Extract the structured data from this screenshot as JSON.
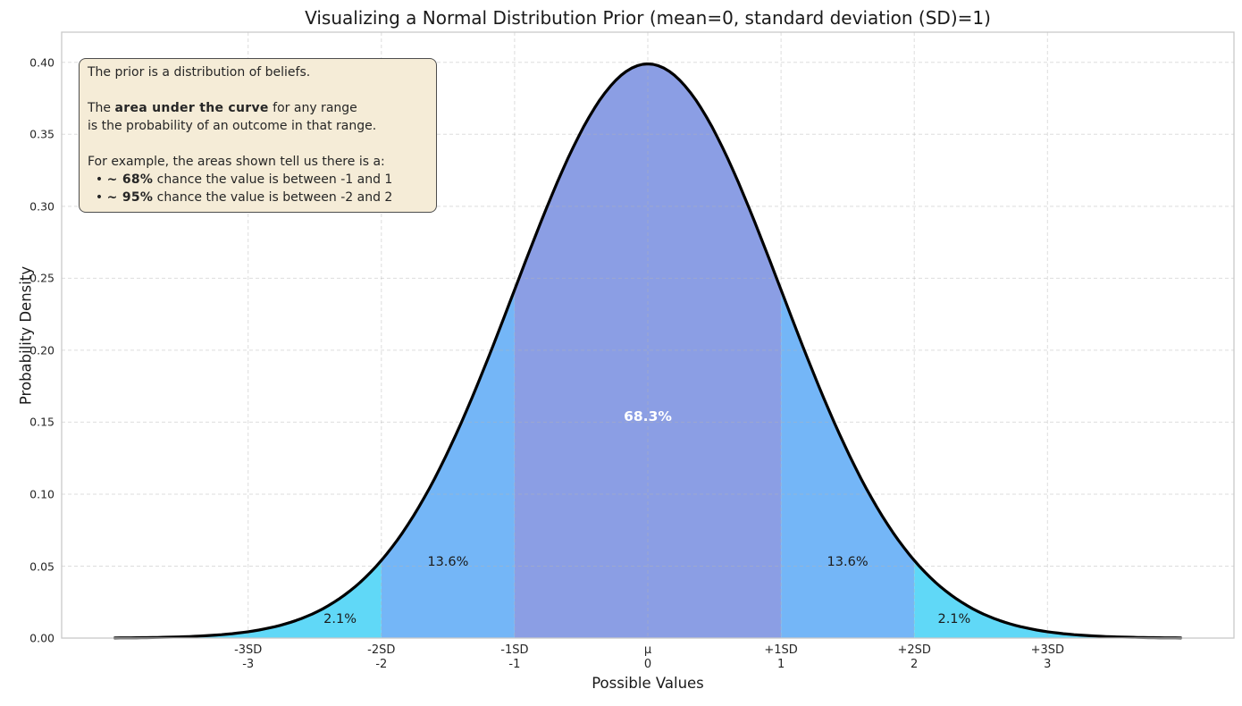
{
  "title": "Visualizing a Normal Distribution Prior (mean=0, standard deviation (SD)=1)",
  "axes": {
    "x_label": "Possible Values",
    "y_label": "Probability Density",
    "x_ticks": [
      {
        "value": -3,
        "line1": "-3SD",
        "line2": "-3"
      },
      {
        "value": -2,
        "line1": "-2SD",
        "line2": "-2"
      },
      {
        "value": -1,
        "line1": "-1SD",
        "line2": "-1"
      },
      {
        "value": 0,
        "line1": "μ",
        "line2": "0"
      },
      {
        "value": 1,
        "line1": "+1SD",
        "line2": "1"
      },
      {
        "value": 2,
        "line1": "+2SD",
        "line2": "2"
      },
      {
        "value": 3,
        "line1": "+3SD",
        "line2": "3"
      }
    ],
    "y_ticks": [
      {
        "value": 0.0,
        "label": "0.00"
      },
      {
        "value": 0.05,
        "label": "0.05"
      },
      {
        "value": 0.1,
        "label": "0.10"
      },
      {
        "value": 0.15,
        "label": "0.15"
      },
      {
        "value": 0.2,
        "label": "0.20"
      },
      {
        "value": 0.25,
        "label": "0.25"
      },
      {
        "value": 0.3,
        "label": "0.30"
      },
      {
        "value": 0.35,
        "label": "0.35"
      }
    ],
    "y_top_tick": {
      "value": 0.4,
      "label": "0.40"
    }
  },
  "infobox": {
    "lines": [
      [
        {
          "t": "The prior is a distribution of beliefs.",
          "b": false
        }
      ],
      [],
      [
        {
          "t": "The ",
          "b": false
        },
        {
          "t": "area under the curve",
          "b": true
        },
        {
          "t": " for any range",
          "b": false
        }
      ],
      [
        {
          "t": "is the probability of an outcome in that range.",
          "b": false
        }
      ],
      [],
      [
        {
          "t": "For example, the areas shown tell us there is a:",
          "b": false
        }
      ],
      [
        {
          "t": "  • ",
          "b": false
        },
        {
          "t": "~ 68%",
          "b": true
        },
        {
          "t": " chance the value is between -1 and 1",
          "b": false
        }
      ],
      [
        {
          "t": "  • ",
          "b": false
        },
        {
          "t": "~ 95%",
          "b": true
        },
        {
          "t": " chance the value is between -2 and 2",
          "b": false
        }
      ]
    ]
  },
  "chart_data": {
    "type": "area",
    "distribution": "normal",
    "mean": 0,
    "sd": 1,
    "title": "Visualizing a Normal Distribution Prior (mean=0, standard deviation (SD)=1)",
    "xlabel": "Possible Values",
    "ylabel": "Probability Density",
    "curve_range": [
      -4,
      4
    ],
    "xlim": [
      -4.4,
      4.4
    ],
    "ylim": [
      0,
      0.421
    ],
    "grid": true,
    "curve_color": "#000000",
    "grid_color": "rgba(180,180,180,0.45)",
    "spine_color": "#c9c9c9",
    "peak_density": 0.3989,
    "regions": [
      {
        "from": -4,
        "to": -2,
        "area_pct": 2.1,
        "color": "#60d8f7",
        "label": "2.1%",
        "label_x": -2.31,
        "label_y": 0.013,
        "label_color": "#1a1a1a",
        "emphasis": false
      },
      {
        "from": -2,
        "to": -1,
        "area_pct": 13.6,
        "color": "#74b6f7",
        "label": "13.6%",
        "label_x": -1.5,
        "label_y": 0.053,
        "label_color": "#1a1a1a",
        "emphasis": false
      },
      {
        "from": -1,
        "to": 1,
        "area_pct": 68.3,
        "color": "#8b9ee4",
        "label": "68.3%",
        "label_x": 0.0,
        "label_y": 0.154,
        "label_color": "#ffffff",
        "emphasis": true
      },
      {
        "from": 1,
        "to": 2,
        "area_pct": 13.6,
        "color": "#74b6f7",
        "label": "13.6%",
        "label_x": 1.5,
        "label_y": 0.053,
        "label_color": "#1a1a1a",
        "emphasis": false
      },
      {
        "from": 2,
        "to": 4,
        "area_pct": 2.1,
        "color": "#60d8f7",
        "label": "2.1%",
        "label_x": 2.3,
        "label_y": 0.013,
        "label_color": "#1a1a1a",
        "emphasis": false
      }
    ]
  }
}
